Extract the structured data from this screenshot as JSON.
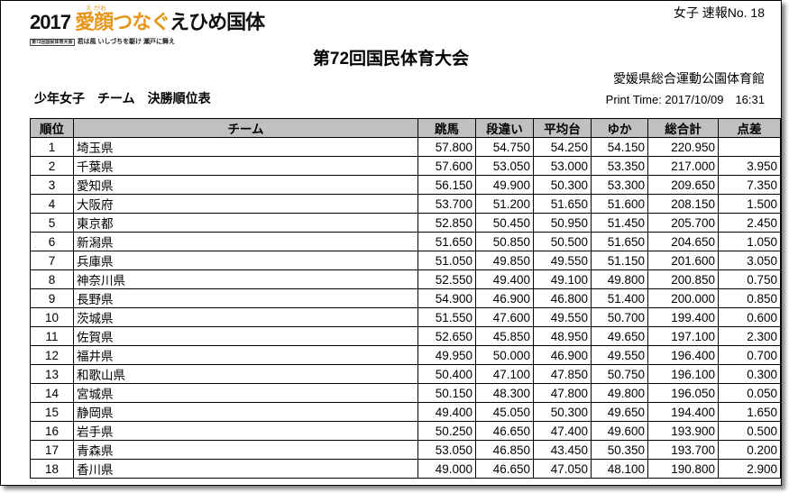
{
  "logo": {
    "text_year": "2017 ",
    "text_a": "愛顔",
    "text_b": "つなぐ",
    "text_c": "えひめ国体",
    "ruby": "え がお",
    "sub_box": "第72回国民体育大会",
    "sub_text": "君は風 いしづちを駆け 瀬戸に舞え"
  },
  "report_no": "女子 速報No. 18",
  "title": "第72回国民体育大会",
  "venue": "愛媛県総合運動公園体育館",
  "subtitle": "少年女子　チーム　決勝順位表",
  "print_time": "Print Time: 2017/10/09　16:31",
  "headers": [
    "順位",
    "チーム",
    "跳馬",
    "段違い",
    "平均台",
    "ゆか",
    "総合計",
    "点差"
  ],
  "rows": [
    [
      "1",
      "埼玉県",
      "57.800",
      "54.750",
      "54.250",
      "54.150",
      "220.950",
      ""
    ],
    [
      "2",
      "千葉県",
      "57.600",
      "53.050",
      "53.000",
      "53.350",
      "217.000",
      "3.950"
    ],
    [
      "3",
      "愛知県",
      "56.150",
      "49.900",
      "50.300",
      "53.300",
      "209.650",
      "7.350"
    ],
    [
      "4",
      "大阪府",
      "53.700",
      "51.200",
      "51.650",
      "51.600",
      "208.150",
      "1.500"
    ],
    [
      "5",
      "東京都",
      "52.850",
      "50.450",
      "50.950",
      "51.450",
      "205.700",
      "2.450"
    ],
    [
      "6",
      "新潟県",
      "51.650",
      "50.850",
      "50.500",
      "51.650",
      "204.650",
      "1.050"
    ],
    [
      "7",
      "兵庫県",
      "51.050",
      "49.850",
      "49.550",
      "51.150",
      "201.600",
      "3.050"
    ],
    [
      "8",
      "神奈川県",
      "52.550",
      "49.400",
      "49.100",
      "49.800",
      "200.850",
      "0.750"
    ],
    [
      "9",
      "長野県",
      "54.900",
      "46.900",
      "46.800",
      "51.400",
      "200.000",
      "0.850"
    ],
    [
      "10",
      "茨城県",
      "51.550",
      "47.600",
      "49.550",
      "50.700",
      "199.400",
      "0.600"
    ],
    [
      "11",
      "佐賀県",
      "52.650",
      "45.850",
      "48.950",
      "49.650",
      "197.100",
      "2.300"
    ],
    [
      "12",
      "福井県",
      "49.950",
      "50.000",
      "46.900",
      "49.550",
      "196.400",
      "0.700"
    ],
    [
      "13",
      "和歌山県",
      "50.400",
      "47.100",
      "47.850",
      "50.750",
      "196.100",
      "0.300"
    ],
    [
      "14",
      "宮城県",
      "50.150",
      "48.300",
      "47.800",
      "49.800",
      "196.050",
      "0.050"
    ],
    [
      "15",
      "静岡県",
      "49.400",
      "45.050",
      "50.300",
      "49.650",
      "194.400",
      "1.650"
    ],
    [
      "16",
      "岩手県",
      "50.250",
      "46.650",
      "47.400",
      "49.600",
      "193.900",
      "0.500"
    ],
    [
      "17",
      "青森県",
      "53.050",
      "46.850",
      "43.450",
      "50.350",
      "193.700",
      "0.200"
    ],
    [
      "18",
      "香川県",
      "49.000",
      "46.650",
      "47.050",
      "48.100",
      "190.800",
      "2.900"
    ]
  ]
}
